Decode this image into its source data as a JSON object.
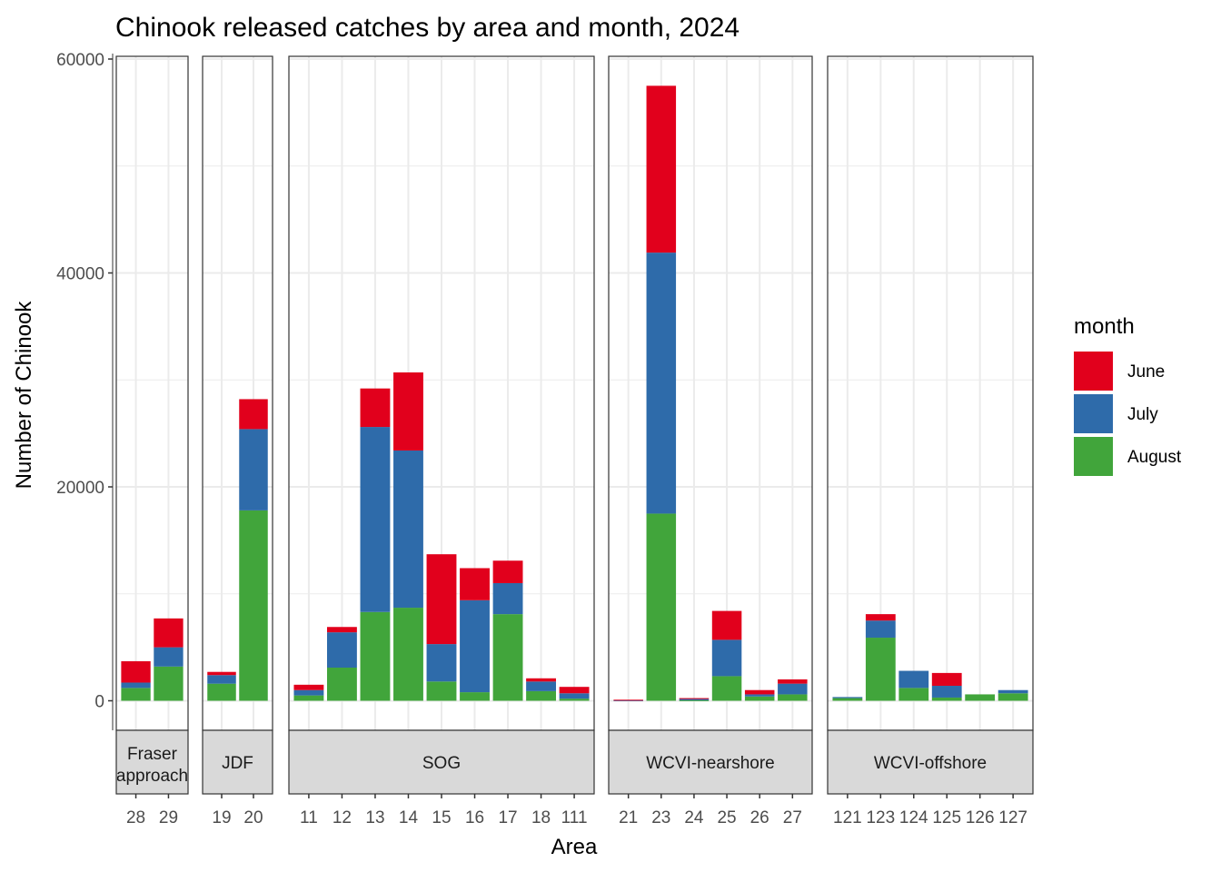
{
  "chart_data": {
    "type": "bar",
    "stacked": true,
    "title": "Chinook released catches by area and month, 2024",
    "xlabel": "Area",
    "ylabel": "Number of Chinook",
    "ylim": [
      -3000,
      60000
    ],
    "yticks": [
      0,
      20000,
      40000,
      60000
    ],
    "grid": true,
    "legend": {
      "title": "month",
      "position": "right",
      "entries": [
        {
          "name": "June",
          "color": "#E1001C"
        },
        {
          "name": "July",
          "color": "#2E6BAA"
        },
        {
          "name": "August",
          "color": "#41A53B"
        }
      ]
    },
    "facet_position": "bottom",
    "facets": [
      {
        "name": "Fraser\napproach",
        "categories": [
          "28",
          "29"
        ],
        "series": [
          {
            "name": "August",
            "values": [
              1200,
              3200
            ]
          },
          {
            "name": "July",
            "values": [
              500,
              1800
            ]
          },
          {
            "name": "June",
            "values": [
              2000,
              2700
            ]
          }
        ]
      },
      {
        "name": "JDF",
        "categories": [
          "19",
          "20"
        ],
        "series": [
          {
            "name": "August",
            "values": [
              1600,
              17800
            ]
          },
          {
            "name": "July",
            "values": [
              800,
              7600
            ]
          },
          {
            "name": "June",
            "values": [
              300,
              2800
            ]
          }
        ]
      },
      {
        "name": "SOG",
        "categories": [
          "11",
          "12",
          "13",
          "14",
          "15",
          "16",
          "17",
          "18",
          "111"
        ],
        "series": [
          {
            "name": "August",
            "values": [
              500,
              3100,
              8300,
              8700,
              1800,
              800,
              8100,
              900,
              200
            ]
          },
          {
            "name": "July",
            "values": [
              500,
              3300,
              17300,
              14700,
              3500,
              8600,
              2900,
              900,
              500
            ]
          },
          {
            "name": "June",
            "values": [
              500,
              500,
              3600,
              7300,
              8400,
              3000,
              2100,
              300,
              600
            ]
          }
        ]
      },
      {
        "name": "WCVI-nearshore",
        "categories": [
          "21",
          "23",
          "24",
          "25",
          "26",
          "27"
        ],
        "series": [
          {
            "name": "August",
            "values": [
              0,
              17500,
              50,
              2300,
              400,
              600
            ]
          },
          {
            "name": "July",
            "values": [
              50,
              24400,
              150,
              3400,
              200,
              1000
            ]
          },
          {
            "name": "June",
            "values": [
              50,
              15600,
              50,
              2700,
              400,
              400
            ]
          }
        ]
      },
      {
        "name": "WCVI-offshore",
        "categories": [
          "121",
          "123",
          "124",
          "125",
          "126",
          "127"
        ],
        "series": [
          {
            "name": "August",
            "values": [
              250,
              5900,
              1200,
              300,
              600,
              700
            ]
          },
          {
            "name": "July",
            "values": [
              100,
              1600,
              1600,
              1100,
              0,
              300
            ]
          },
          {
            "name": "June",
            "values": [
              0,
              600,
              0,
              1200,
              0,
              0
            ]
          }
        ]
      }
    ]
  }
}
